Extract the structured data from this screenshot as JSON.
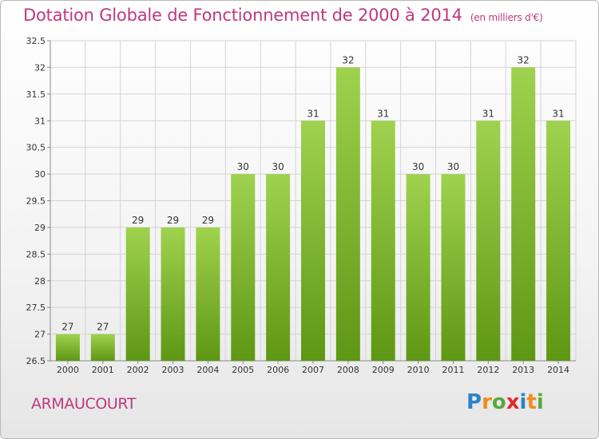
{
  "title": "Dotation Globale de Fonctionnement de 2000 à 2014",
  "subtitle": "(en milliers d'€)",
  "commune": "ARMAUCOURT",
  "logo": {
    "text": "Proxiti",
    "letters": [
      {
        "char": "P",
        "color": "#2a83c7"
      },
      {
        "char": "r",
        "color": "#f28c1c"
      },
      {
        "char": "o",
        "color": "#5aa93a"
      },
      {
        "char": "x",
        "color": "#e3262f"
      },
      {
        "char": "i",
        "color": "#2a83c7"
      },
      {
        "char": "t",
        "color": "#f28c1c"
      },
      {
        "char": "i",
        "color": "#5aa93a"
      }
    ]
  },
  "colors": {
    "accent": "#c0387e",
    "bar_top": "#9fd24f",
    "bar_bottom": "#5e9714",
    "grid": "#d4d4d4",
    "axis_text": "#333333"
  },
  "chart_data": {
    "type": "bar",
    "title": "Dotation Globale de Fonctionnement de 2000 à 2014",
    "subtitle": "(en milliers d'€)",
    "xlabel": "",
    "ylabel": "",
    "categories": [
      "2000",
      "2001",
      "2002",
      "2003",
      "2004",
      "2005",
      "2006",
      "2007",
      "2008",
      "2009",
      "2010",
      "2011",
      "2012",
      "2013",
      "2014"
    ],
    "values": [
      27,
      27,
      29,
      29,
      29,
      30,
      30,
      31,
      32,
      31,
      30,
      30,
      31,
      32,
      31
    ],
    "data_labels": [
      "27",
      "27",
      "29",
      "29",
      "29",
      "30",
      "30",
      "31",
      "32",
      "31",
      "30",
      "30",
      "31",
      "32",
      "31"
    ],
    "ylim": [
      26.5,
      32.5
    ],
    "yticks": [
      26.5,
      27,
      27.5,
      28,
      28.5,
      29,
      29.5,
      30,
      30.5,
      31,
      31.5,
      32,
      32.5
    ],
    "ytick_labels": [
      "26.5",
      "27",
      "27.5",
      "28",
      "28.5",
      "29",
      "29.5",
      "30",
      "30.5",
      "31",
      "31.5",
      "32",
      "32.5"
    ],
    "grid": true,
    "legend": "none"
  }
}
